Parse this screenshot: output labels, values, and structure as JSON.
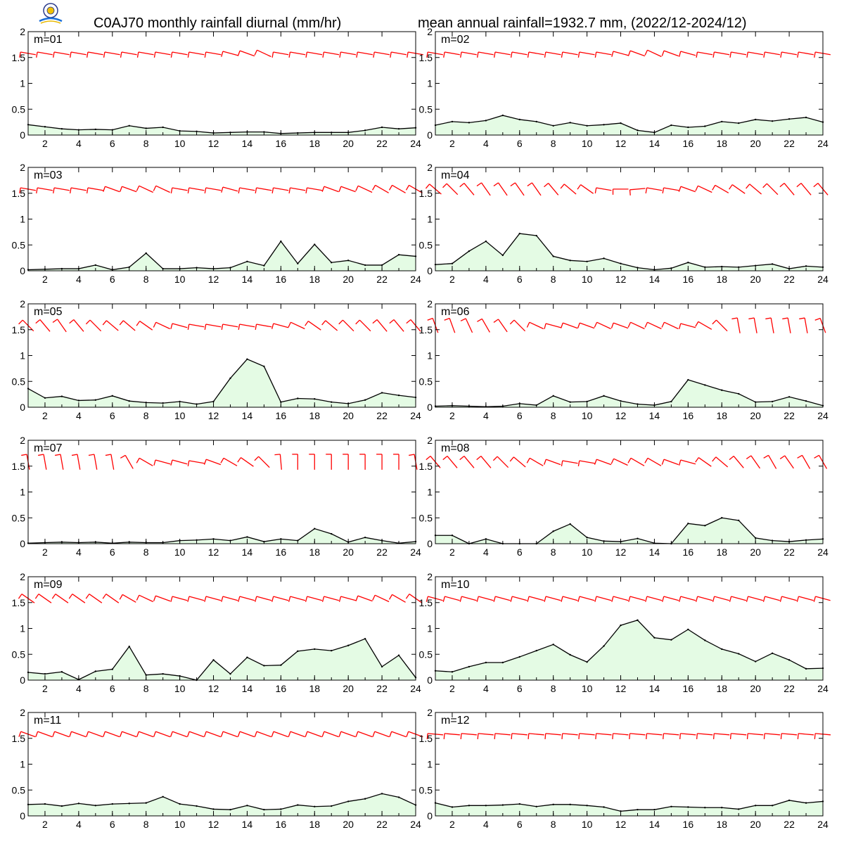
{
  "header": {
    "title_left": "C0AJ70 monthly rainfall diurnal (mm/hr)",
    "title_right": "mean annual rainfall=1932.7 mm, (2022/12-2024/12)"
  },
  "style": {
    "rain_line": "#000000",
    "rain_fill": "#e4fbe4",
    "wind_color": "#ff0000",
    "axis_color": "#000000"
  },
  "chart_data": [
    {
      "type": "area",
      "label": "m=01",
      "x": [
        1,
        2,
        3,
        4,
        5,
        6,
        7,
        8,
        9,
        10,
        11,
        12,
        13,
        14,
        15,
        16,
        17,
        18,
        19,
        20,
        21,
        22,
        23,
        24
      ],
      "xticks": [
        2,
        4,
        6,
        8,
        10,
        12,
        14,
        16,
        18,
        20,
        22,
        24
      ],
      "ylim": [
        0,
        2
      ],
      "yticks": [
        "0",
        "0.5",
        "1",
        "1.5",
        "2"
      ],
      "xlim": [
        1,
        24
      ],
      "values": [
        0.2,
        0.16,
        0.12,
        0.1,
        0.11,
        0.1,
        0.18,
        0.13,
        0.15,
        0.08,
        0.07,
        0.04,
        0.05,
        0.06,
        0.06,
        0.03,
        0.04,
        0.05,
        0.05,
        0.05,
        0.09,
        0.15,
        0.12,
        0.14
      ],
      "wind_dir": [
        100,
        100,
        100,
        100,
        100,
        100,
        100,
        100,
        100,
        100,
        100,
        100,
        105,
        110,
        115,
        100,
        100,
        100,
        100,
        100,
        100,
        100,
        100,
        100
      ]
    },
    {
      "type": "area",
      "label": "m=02",
      "x": [
        1,
        2,
        3,
        4,
        5,
        6,
        7,
        8,
        9,
        10,
        11,
        12,
        13,
        14,
        15,
        16,
        17,
        18,
        19,
        20,
        21,
        22,
        23,
        24
      ],
      "xticks": [
        2,
        4,
        6,
        8,
        10,
        12,
        14,
        16,
        18,
        20,
        22,
        24
      ],
      "ylim": [
        0,
        2
      ],
      "yticks": [
        "0",
        "0.5",
        "1",
        "1.5",
        "2"
      ],
      "xlim": [
        1,
        24
      ],
      "values": [
        0.19,
        0.26,
        0.24,
        0.28,
        0.38,
        0.3,
        0.26,
        0.18,
        0.24,
        0.18,
        0.2,
        0.23,
        0.09,
        0.05,
        0.19,
        0.15,
        0.17,
        0.26,
        0.23,
        0.3,
        0.27,
        0.31,
        0.34,
        0.25
      ],
      "wind_dir": [
        100,
        100,
        100,
        100,
        100,
        100,
        100,
        100,
        100,
        100,
        100,
        105,
        110,
        115,
        110,
        105,
        100,
        100,
        100,
        100,
        100,
        100,
        100,
        100
      ]
    },
    {
      "type": "area",
      "label": "m=03",
      "x": [
        1,
        2,
        3,
        4,
        5,
        6,
        7,
        8,
        9,
        10,
        11,
        12,
        13,
        14,
        15,
        16,
        17,
        18,
        19,
        20,
        21,
        22,
        23,
        24
      ],
      "xticks": [
        2,
        4,
        6,
        8,
        10,
        12,
        14,
        16,
        18,
        20,
        22,
        24
      ],
      "ylim": [
        0,
        2
      ],
      "yticks": [
        "0",
        "0.5",
        "1",
        "1.5",
        "2"
      ],
      "xlim": [
        1,
        24
      ],
      "values": [
        0.02,
        0.03,
        0.04,
        0.04,
        0.11,
        0.02,
        0.07,
        0.34,
        0.04,
        0.04,
        0.06,
        0.04,
        0.06,
        0.18,
        0.1,
        0.57,
        0.14,
        0.51,
        0.16,
        0.2,
        0.11,
        0.11,
        0.31,
        0.28
      ],
      "wind_dir": [
        100,
        100,
        100,
        100,
        100,
        110,
        110,
        115,
        115,
        100,
        100,
        100,
        105,
        100,
        100,
        100,
        100,
        100,
        110,
        110,
        115,
        120,
        120,
        120
      ]
    },
    {
      "type": "area",
      "label": "m=04",
      "x": [
        1,
        2,
        3,
        4,
        5,
        6,
        7,
        8,
        9,
        10,
        11,
        12,
        13,
        14,
        15,
        16,
        17,
        18,
        19,
        20,
        21,
        22,
        23,
        24
      ],
      "xticks": [
        2,
        4,
        6,
        8,
        10,
        12,
        14,
        16,
        18,
        20,
        22,
        24
      ],
      "ylim": [
        0,
        2
      ],
      "yticks": [
        "0",
        "0.5",
        "1",
        "1.5",
        "2"
      ],
      "xlim": [
        1,
        24
      ],
      "values": [
        0.12,
        0.14,
        0.38,
        0.57,
        0.3,
        0.72,
        0.68,
        0.28,
        0.2,
        0.18,
        0.24,
        0.14,
        0.06,
        0.02,
        0.05,
        0.16,
        0.07,
        0.08,
        0.07,
        0.1,
        0.13,
        0.04,
        0.09,
        0.07
      ],
      "wind_dir": [
        130,
        135,
        140,
        145,
        145,
        145,
        145,
        140,
        130,
        125,
        100,
        90,
        85,
        100,
        100,
        110,
        115,
        120,
        125,
        130,
        135,
        140,
        140,
        140
      ]
    },
    {
      "type": "area",
      "label": "m=05",
      "x": [
        1,
        2,
        3,
        4,
        5,
        6,
        7,
        8,
        9,
        10,
        11,
        12,
        13,
        14,
        15,
        16,
        17,
        18,
        19,
        20,
        21,
        22,
        23,
        24
      ],
      "xticks": [
        2,
        4,
        6,
        8,
        10,
        12,
        14,
        16,
        18,
        20,
        22,
        24
      ],
      "ylim": [
        0,
        2
      ],
      "yticks": [
        "0",
        "0.5",
        "1",
        "1.5",
        "2"
      ],
      "xlim": [
        1,
        24
      ],
      "values": [
        0.36,
        0.18,
        0.21,
        0.13,
        0.14,
        0.22,
        0.12,
        0.09,
        0.08,
        0.11,
        0.06,
        0.11,
        0.56,
        0.93,
        0.79,
        0.1,
        0.17,
        0.16,
        0.1,
        0.07,
        0.14,
        0.28,
        0.23,
        0.19
      ],
      "wind_dir": [
        135,
        140,
        145,
        140,
        135,
        130,
        130,
        125,
        115,
        105,
        100,
        100,
        100,
        100,
        100,
        105,
        115,
        125,
        130,
        135,
        135,
        140,
        140,
        140
      ]
    },
    {
      "type": "area",
      "label": "m=06",
      "x": [
        1,
        2,
        3,
        4,
        5,
        6,
        7,
        8,
        9,
        10,
        11,
        12,
        13,
        14,
        15,
        16,
        17,
        18,
        19,
        20,
        21,
        22,
        23,
        24
      ],
      "xticks": [
        2,
        4,
        6,
        8,
        10,
        12,
        14,
        16,
        18,
        20,
        22,
        24
      ],
      "ylim": [
        0,
        2
      ],
      "yticks": [
        "0",
        "0.5",
        "1",
        "1.5",
        "2"
      ],
      "xlim": [
        1,
        24
      ],
      "values": [
        0.02,
        0.03,
        0.02,
        0.01,
        0.02,
        0.07,
        0.04,
        0.22,
        0.1,
        0.11,
        0.22,
        0.12,
        0.06,
        0.04,
        0.11,
        0.53,
        0.43,
        0.33,
        0.26,
        0.1,
        0.11,
        0.2,
        0.12,
        0.03
      ],
      "wind_dir": [
        160,
        160,
        155,
        150,
        145,
        135,
        115,
        105,
        110,
        110,
        115,
        110,
        115,
        115,
        115,
        105,
        120,
        135,
        170,
        170,
        170,
        170,
        170,
        160
      ]
    },
    {
      "type": "area",
      "label": "m=07",
      "x": [
        1,
        2,
        3,
        4,
        5,
        6,
        7,
        8,
        9,
        10,
        11,
        12,
        13,
        14,
        15,
        16,
        17,
        18,
        19,
        20,
        21,
        22,
        23,
        24
      ],
      "xticks": [
        2,
        4,
        6,
        8,
        10,
        12,
        14,
        16,
        18,
        20,
        22,
        24
      ],
      "ylim": [
        0,
        2
      ],
      "yticks": [
        "0",
        "0.5",
        "1",
        "1.5",
        "2"
      ],
      "xlim": [
        1,
        24
      ],
      "values": [
        0.01,
        0.02,
        0.03,
        0.02,
        0.03,
        0.01,
        0.03,
        0.02,
        0.02,
        0.06,
        0.07,
        0.09,
        0.06,
        0.13,
        0.04,
        0.09,
        0.06,
        0.29,
        0.19,
        0.03,
        0.12,
        0.06,
        0.01,
        0.04
      ],
      "wind_dir": [
        170,
        170,
        170,
        170,
        170,
        170,
        150,
        120,
        105,
        105,
        100,
        110,
        120,
        125,
        135,
        175,
        180,
        180,
        180,
        180,
        180,
        180,
        180,
        170
      ]
    },
    {
      "type": "area",
      "label": "m=08",
      "x": [
        1,
        2,
        3,
        4,
        5,
        6,
        7,
        8,
        9,
        10,
        11,
        12,
        13,
        14,
        15,
        16,
        17,
        18,
        19,
        20,
        21,
        22,
        23,
        24
      ],
      "xticks": [
        2,
        4,
        6,
        8,
        10,
        12,
        14,
        16,
        18,
        20,
        22,
        24
      ],
      "ylim": [
        0,
        2
      ],
      "yticks": [
        "0",
        "0.5",
        "1",
        "1.5",
        "2"
      ],
      "xlim": [
        1,
        24
      ],
      "values": [
        0.16,
        0.16,
        0.0,
        0.09,
        0.0,
        0.0,
        0.0,
        0.24,
        0.38,
        0.12,
        0.05,
        0.04,
        0.1,
        0.01,
        0.0,
        0.39,
        0.35,
        0.5,
        0.45,
        0.11,
        0.06,
        0.04,
        0.07,
        0.09
      ],
      "wind_dir": [
        140,
        140,
        140,
        140,
        135,
        130,
        120,
        110,
        100,
        100,
        110,
        115,
        120,
        120,
        110,
        105,
        125,
        130,
        140,
        145,
        150,
        145,
        150,
        150
      ]
    },
    {
      "type": "area",
      "label": "m=09",
      "x": [
        1,
        2,
        3,
        4,
        5,
        6,
        7,
        8,
        9,
        10,
        11,
        12,
        13,
        14,
        15,
        16,
        17,
        18,
        19,
        20,
        21,
        22,
        23,
        24
      ],
      "xticks": [
        2,
        4,
        6,
        8,
        10,
        12,
        14,
        16,
        18,
        20,
        22,
        24
      ],
      "ylim": [
        0,
        2
      ],
      "yticks": [
        "0",
        "0.5",
        "1",
        "1.5",
        "2"
      ],
      "xlim": [
        1,
        24
      ],
      "values": [
        0.15,
        0.12,
        0.16,
        0.01,
        0.17,
        0.21,
        0.65,
        0.1,
        0.12,
        0.08,
        0.0,
        0.39,
        0.12,
        0.44,
        0.28,
        0.29,
        0.56,
        0.6,
        0.57,
        0.67,
        0.8,
        0.26,
        0.48,
        0.05
      ],
      "wind_dir": [
        125,
        125,
        125,
        125,
        125,
        125,
        120,
        115,
        110,
        105,
        105,
        105,
        105,
        105,
        105,
        105,
        105,
        105,
        105,
        105,
        110,
        115,
        120,
        125
      ]
    },
    {
      "type": "area",
      "label": "m=10",
      "x": [
        1,
        2,
        3,
        4,
        5,
        6,
        7,
        8,
        9,
        10,
        11,
        12,
        13,
        14,
        15,
        16,
        17,
        18,
        19,
        20,
        21,
        22,
        23,
        24
      ],
      "xticks": [
        2,
        4,
        6,
        8,
        10,
        12,
        14,
        16,
        18,
        20,
        22,
        24
      ],
      "ylim": [
        0,
        2
      ],
      "yticks": [
        "0",
        "0.5",
        "1",
        "1.5",
        "2"
      ],
      "xlim": [
        1,
        24
      ],
      "values": [
        0.18,
        0.16,
        0.26,
        0.34,
        0.34,
        0.45,
        0.57,
        0.69,
        0.49,
        0.35,
        0.66,
        1.06,
        1.16,
        0.82,
        0.78,
        0.98,
        0.77,
        0.6,
        0.51,
        0.36,
        0.52,
        0.39,
        0.22,
        0.23
      ],
      "wind_dir": [
        105,
        105,
        105,
        105,
        105,
        105,
        105,
        105,
        105,
        105,
        105,
        105,
        105,
        105,
        105,
        105,
        105,
        105,
        105,
        105,
        105,
        105,
        105,
        105
      ]
    },
    {
      "type": "area",
      "label": "m=11",
      "x": [
        1,
        2,
        3,
        4,
        5,
        6,
        7,
        8,
        9,
        10,
        11,
        12,
        13,
        14,
        15,
        16,
        17,
        18,
        19,
        20,
        21,
        22,
        23,
        24
      ],
      "xticks": [
        2,
        4,
        6,
        8,
        10,
        12,
        14,
        16,
        18,
        20,
        22,
        24
      ],
      "ylim": [
        0,
        2
      ],
      "yticks": [
        "0",
        "0.5",
        "1",
        "1.5",
        "2"
      ],
      "xlim": [
        1,
        24
      ],
      "values": [
        0.22,
        0.23,
        0.19,
        0.24,
        0.2,
        0.23,
        0.24,
        0.25,
        0.37,
        0.23,
        0.19,
        0.13,
        0.12,
        0.2,
        0.12,
        0.13,
        0.21,
        0.18,
        0.19,
        0.28,
        0.33,
        0.43,
        0.36,
        0.21
      ],
      "wind_dir": [
        110,
        110,
        110,
        110,
        110,
        110,
        110,
        110,
        110,
        110,
        110,
        110,
        110,
        110,
        110,
        110,
        110,
        110,
        110,
        110,
        110,
        110,
        110,
        110
      ]
    },
    {
      "type": "area",
      "label": "m=12",
      "x": [
        1,
        2,
        3,
        4,
        5,
        6,
        7,
        8,
        9,
        10,
        11,
        12,
        13,
        14,
        15,
        16,
        17,
        18,
        19,
        20,
        21,
        22,
        23,
        24
      ],
      "xticks": [
        2,
        4,
        6,
        8,
        10,
        12,
        14,
        16,
        18,
        20,
        22,
        24
      ],
      "ylim": [
        0,
        2
      ],
      "yticks": [
        "0",
        "0.5",
        "1",
        "1.5",
        "2"
      ],
      "xlim": [
        1,
        24
      ],
      "values": [
        0.25,
        0.17,
        0.2,
        0.2,
        0.21,
        0.23,
        0.18,
        0.22,
        0.22,
        0.2,
        0.17,
        0.09,
        0.12,
        0.12,
        0.18,
        0.17,
        0.16,
        0.16,
        0.13,
        0.2,
        0.2,
        0.3,
        0.25,
        0.28
      ],
      "wind_dir": [
        95,
        95,
        95,
        95,
        95,
        95,
        95,
        95,
        95,
        95,
        95,
        95,
        95,
        95,
        95,
        95,
        95,
        95,
        95,
        95,
        95,
        95,
        95,
        95
      ]
    }
  ]
}
